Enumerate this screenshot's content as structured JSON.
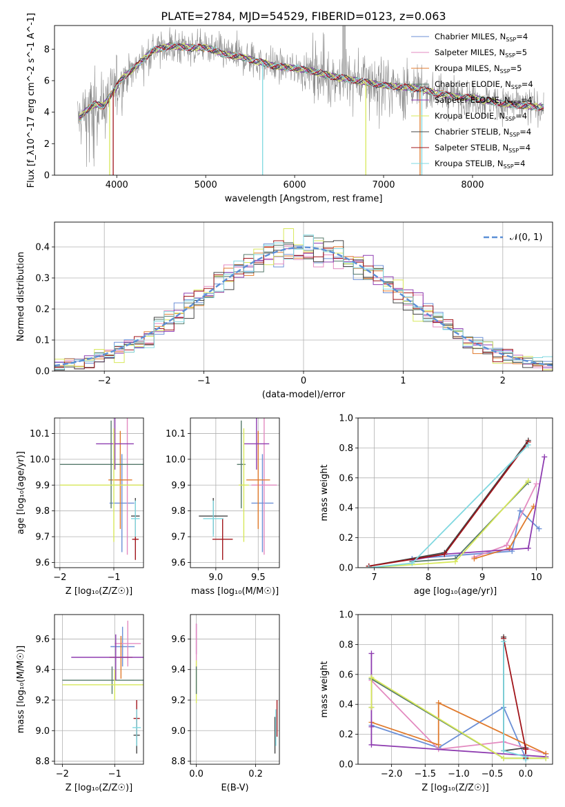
{
  "figure_title": "PLATE=2784, MJD=54529, FIBERID=0123, z=0.063",
  "colors": {
    "Chabrier MILES": "#6b8fd6",
    "Salpeter MILES": "#e38ac0",
    "Kroupa MILES": "#e07a2c",
    "Chabrier ELODIE": "#55796a",
    "Salpeter ELODIE": "#8e3cb0",
    "Kroupa ELODIE": "#d7e85a",
    "Chabrier STELIB": "#444444",
    "Salpeter STELIB": "#a0141a",
    "Kroupa STELIB": "#7fd8e0",
    "data": "#8a8a8a",
    "gaussian": "#5b8fd6"
  },
  "chart_data": [
    {
      "id": "spectrum",
      "type": "line",
      "xlabel": "wavelength [Angstrom, rest frame]",
      "ylabel": "Flux [f_λ10^-17 erg cm^-2 s^-1 A^-1]",
      "xlim": [
        3300,
        8900
      ],
      "ylim": [
        0,
        9.5
      ],
      "xticks": [
        4000,
        5000,
        6000,
        7000,
        8000
      ],
      "yticks": [
        0,
        2,
        4,
        6,
        8
      ],
      "grid": false,
      "legend_position": "upper-right",
      "legend": [
        {
          "model": "Chabrier MILES",
          "label": "Chabrier MILES, N",
          "sub": "SSP",
          "tail": "=4"
        },
        {
          "model": "Salpeter MILES",
          "label": "Salpeter MILES, N",
          "sub": "SSP",
          "tail": "=5"
        },
        {
          "model": "Kroupa MILES",
          "label": "Kroupa MILES, N",
          "sub": "SSP",
          "tail": "=5"
        },
        {
          "model": "Chabrier ELODIE",
          "label": "Chabrier ELODIE, N",
          "sub": "SSP",
          "tail": "=4"
        },
        {
          "model": "Salpeter ELODIE",
          "label": "Salpeter ELODIE, N",
          "sub": "SSP",
          "tail": "=4"
        },
        {
          "model": "Kroupa ELODIE",
          "label": "Kroupa ELODIE, N",
          "sub": "SSP",
          "tail": "=4"
        },
        {
          "model": "Chabrier STELIB",
          "label": "Chabrier STELIB, N",
          "sub": "SSP",
          "tail": "=4"
        },
        {
          "model": "Salpeter STELIB",
          "label": "Salpeter STELIB, N",
          "sub": "SSP",
          "tail": "=4"
        },
        {
          "model": "Kroupa STELIB",
          "label": "Kroupa STELIB, N",
          "sub": "SSP",
          "tail": "=4"
        }
      ],
      "continuum_wavelength": [
        3550,
        3650,
        3750,
        3850,
        3950,
        4050,
        4200,
        4400,
        4600,
        4800,
        5000,
        5200,
        5400,
        5600,
        5800,
        6000,
        6200,
        6400,
        6600,
        6800,
        7000,
        7200,
        7400,
        7600,
        7800,
        8000,
        8200,
        8400,
        8600,
        8800
      ],
      "continuum_flux": [
        3.4,
        4.1,
        4.5,
        4.4,
        5.2,
        6.1,
        6.8,
        7.9,
        8.2,
        8.1,
        8.1,
        7.7,
        7.5,
        7.2,
        6.9,
        6.8,
        6.6,
        6.3,
        6.1,
        5.9,
        5.7,
        5.6,
        5.5,
        5.2,
        5.0,
        4.9,
        4.7,
        4.5,
        4.4,
        4.3
      ],
      "gaps": [
        {
          "model": "Kroupa ELODIE",
          "wavelength": 3920
        },
        {
          "model": "Salpeter STELIB",
          "wavelength": 3960
        },
        {
          "model": "Kroupa STELIB",
          "wavelength": 5640
        },
        {
          "model": "Kroupa ELODIE",
          "wavelength": 6800
        },
        {
          "model": "Kroupa MILES",
          "wavelength": 7410
        },
        {
          "model": "Kroupa STELIB",
          "wavelength": 7430
        }
      ]
    },
    {
      "id": "residuals",
      "type": "step",
      "xlabel": "(data-model)/error",
      "ylabel": "Normed distribution",
      "xlim": [
        -2.5,
        2.5
      ],
      "ylim": [
        0,
        0.48
      ],
      "xticks": [
        -2,
        -1,
        0,
        1,
        2
      ],
      "yticks": [
        0.0,
        0.1,
        0.2,
        0.3,
        0.4
      ],
      "grid": true,
      "legend_position": "upper-right",
      "gaussian_label": "𝒩(0, 1)",
      "bins": 50
    },
    {
      "id": "age_vs_Z",
      "type": "errorbar",
      "xlabel": "Z [log₁₀(Z/Z☉)]",
      "ylabel": "age  [log₁₀(age/yr)]",
      "xlim": [
        -2.1,
        -0.45
      ],
      "ylim": [
        9.58,
        10.16
      ],
      "xticks": [
        -2,
        -1
      ],
      "yticks": [
        9.6,
        9.7,
        9.8,
        9.9,
        10.0,
        10.1
      ],
      "grid": true,
      "points": [
        {
          "model": "Chabrier MILES",
          "x": -0.85,
          "xerr": 0.23,
          "y": 9.83,
          "yerr": 0.19
        },
        {
          "model": "Salpeter MILES",
          "x": -0.75,
          "xerr": 0.25,
          "y": 9.9,
          "yerr": 0.27
        },
        {
          "model": "Kroupa MILES",
          "x": -0.88,
          "xerr": 0.22,
          "y": 9.92,
          "yerr": 0.19
        },
        {
          "model": "Chabrier ELODIE",
          "x": -1.05,
          "xerr": 0.95,
          "y": 9.98,
          "yerr": 0.17
        },
        {
          "model": "Salpeter ELODIE",
          "x": -0.98,
          "xerr": 0.35,
          "y": 10.06,
          "yerr": 0.1
        },
        {
          "model": "Kroupa ELODIE",
          "x": -1.0,
          "xerr": 1.0,
          "y": 9.9,
          "yerr": 0.22
        },
        {
          "model": "Chabrier STELIB",
          "x": -0.6,
          "xerr": 0.08,
          "y": 9.78,
          "yerr": 0.07
        },
        {
          "model": "Salpeter STELIB",
          "x": -0.6,
          "xerr": 0.06,
          "y": 9.69,
          "yerr": 0.08
        },
        {
          "model": "Kroupa STELIB",
          "x": -0.6,
          "xerr": 0.08,
          "y": 9.77,
          "yerr": 0.07
        }
      ]
    },
    {
      "id": "age_vs_mass",
      "type": "errorbar",
      "xlabel": "mass [log₁₀(M/M☉)]",
      "ylabel": "",
      "xlim": [
        8.7,
        9.75
      ],
      "ylim": [
        9.58,
        10.16
      ],
      "xticks": [
        9.0,
        9.5
      ],
      "yticks": [
        9.6,
        9.7,
        9.8,
        9.9,
        10.0,
        10.1
      ],
      "grid": true,
      "points": [
        {
          "model": "Chabrier MILES",
          "x": 9.55,
          "xerr": 0.13,
          "y": 9.83,
          "yerr": 0.19
        },
        {
          "model": "Salpeter MILES",
          "x": 9.57,
          "xerr": 0.15,
          "y": 9.9,
          "yerr": 0.27
        },
        {
          "model": "Kroupa MILES",
          "x": 9.5,
          "xerr": 0.14,
          "y": 9.92,
          "yerr": 0.19
        },
        {
          "model": "Chabrier ELODIE",
          "x": 9.3,
          "xerr": 0.05,
          "y": 9.98,
          "yerr": 0.17
        },
        {
          "model": "Salpeter ELODIE",
          "x": 9.48,
          "xerr": 0.15,
          "y": 10.06,
          "yerr": 0.1
        },
        {
          "model": "Kroupa ELODIE",
          "x": 9.33,
          "xerr": 0.06,
          "y": 9.9,
          "yerr": 0.22
        },
        {
          "model": "Chabrier STELIB",
          "x": 8.97,
          "xerr": 0.17,
          "y": 9.78,
          "yerr": 0.07
        },
        {
          "model": "Salpeter STELIB",
          "x": 9.08,
          "xerr": 0.12,
          "y": 9.69,
          "yerr": 0.08
        },
        {
          "model": "Kroupa STELIB",
          "x": 8.97,
          "xerr": 0.12,
          "y": 9.77,
          "yerr": 0.07
        }
      ]
    },
    {
      "id": "weight_vs_age",
      "type": "line",
      "xlabel": "age  [log₁₀(age/yr)]",
      "ylabel": "mass weight",
      "xlim": [
        6.7,
        10.3
      ],
      "ylim": [
        0,
        1.0
      ],
      "xticks": [
        7,
        8,
        9,
        10
      ],
      "yticks": [
        0.0,
        0.2,
        0.4,
        0.6,
        0.8,
        1.0
      ],
      "grid": true,
      "series": [
        {
          "model": "Chabrier MILES",
          "x": [
            7.7,
            9.55,
            9.7,
            10.05
          ],
          "y": [
            0.06,
            0.11,
            0.38,
            0.26
          ]
        },
        {
          "model": "Salpeter MILES",
          "x": [
            8.85,
            9.45,
            10.0
          ],
          "y": [
            0.07,
            0.15,
            0.56
          ]
        },
        {
          "model": "Kroupa MILES",
          "x": [
            8.85,
            9.5,
            9.95
          ],
          "y": [
            0.06,
            0.13,
            0.41
          ]
        },
        {
          "model": "Chabrier ELODIE",
          "x": [
            7.7,
            8.5,
            9.85
          ],
          "y": [
            0.04,
            0.06,
            0.57
          ]
        },
        {
          "model": "Salpeter ELODIE",
          "x": [
            7.7,
            8.3,
            9.85,
            10.15
          ],
          "y": [
            0.05,
            0.09,
            0.13,
            0.74
          ]
        },
        {
          "model": "Kroupa ELODIE",
          "x": [
            6.9,
            8.5,
            9.85
          ],
          "y": [
            0.0,
            0.04,
            0.58
          ]
        },
        {
          "model": "Chabrier STELIB",
          "x": [
            6.9,
            8.3,
            9.85
          ],
          "y": [
            0.01,
            0.1,
            0.85
          ]
        },
        {
          "model": "Salpeter STELIB",
          "x": [
            6.9,
            8.3,
            9.85
          ],
          "y": [
            0.01,
            0.09,
            0.84
          ]
        },
        {
          "model": "Kroupa STELIB",
          "x": [
            6.9,
            7.7,
            9.85
          ],
          "y": [
            0.0,
            0.03,
            0.82
          ]
        }
      ]
    },
    {
      "id": "mass_vs_Z",
      "type": "errorbar",
      "xlabel": "Z [log₁₀(Z/Z☉)]",
      "ylabel": "mass [log₁₀(M/M☉)]",
      "xlim": [
        -2.15,
        -0.45
      ],
      "ylim": [
        8.78,
        9.76
      ],
      "xticks": [
        -2,
        -1
      ],
      "yticks": [
        8.8,
        9.0,
        9.2,
        9.4,
        9.6
      ],
      "grid": true,
      "points": [
        {
          "model": "Chabrier MILES",
          "x": -0.85,
          "xerr": 0.23,
          "y": 9.55,
          "yerr": 0.13
        },
        {
          "model": "Salpeter MILES",
          "x": -0.75,
          "xerr": 0.25,
          "y": 9.57,
          "yerr": 0.15
        },
        {
          "model": "Kroupa MILES",
          "x": -0.88,
          "xerr": 0.22,
          "y": 9.48,
          "yerr": 0.14
        },
        {
          "model": "Chabrier ELODIE",
          "x": -1.05,
          "xerr": 0.95,
          "y": 9.33,
          "yerr": 0.09
        },
        {
          "model": "Salpeter ELODIE",
          "x": -0.98,
          "xerr": 0.85,
          "y": 9.48,
          "yerr": 0.15
        },
        {
          "model": "Kroupa ELODIE",
          "x": -1.0,
          "xerr": 1.0,
          "y": 9.3,
          "yerr": 0.1
        },
        {
          "model": "Chabrier STELIB",
          "x": -0.58,
          "xerr": 0.06,
          "y": 8.97,
          "yerr": 0.12
        },
        {
          "model": "Salpeter STELIB",
          "x": -0.58,
          "xerr": 0.06,
          "y": 9.08,
          "yerr": 0.12
        },
        {
          "model": "Kroupa STELIB",
          "x": -0.58,
          "xerr": 0.08,
          "y": 9.02,
          "yerr": 0.12
        }
      ]
    },
    {
      "id": "mass_vs_ebv",
      "type": "errorbar",
      "xlabel": "E(B-V)",
      "ylabel": "",
      "xlim": [
        -0.02,
        0.28
      ],
      "ylim": [
        8.78,
        9.76
      ],
      "xticks": [
        0.0,
        0.2
      ],
      "yticks": [
        8.8,
        9.0,
        9.2,
        9.4,
        9.6
      ],
      "grid": true,
      "points": [
        {
          "model": "Salpeter ELODIE",
          "x": 0.0,
          "xerr": 0,
          "y": 9.6,
          "yerr": 0.1
        },
        {
          "model": "Salpeter MILES",
          "x": 0.0,
          "xerr": 0,
          "y": 9.55,
          "yerr": 0.15
        },
        {
          "model": "Kroupa ELODIE",
          "x": 0.0,
          "xerr": 0,
          "y": 9.32,
          "yerr": 0.14
        },
        {
          "model": "Chabrier ELODIE",
          "x": 0.0,
          "xerr": 0,
          "y": 9.33,
          "yerr": 0.09
        },
        {
          "model": "Chabrier STELIB",
          "x": 0.265,
          "xerr": 0,
          "y": 8.97,
          "yerr": 0.12
        },
        {
          "model": "Salpeter STELIB",
          "x": 0.272,
          "xerr": 0,
          "y": 9.08,
          "yerr": 0.12
        },
        {
          "model": "Kroupa STELIB",
          "x": 0.268,
          "xerr": 0,
          "y": 9.02,
          "yerr": 0.12
        }
      ]
    },
    {
      "id": "weight_vs_Z",
      "type": "line",
      "xlabel": "Z [log₁₀(Z/Z☉)]",
      "ylabel": "mass weight",
      "xlim": [
        -2.5,
        0.4
      ],
      "ylim": [
        0,
        1.0
      ],
      "xticks": [
        -2.0,
        -1.5,
        -1.0,
        -0.5,
        0.0
      ],
      "yticks": [
        0.0,
        0.2,
        0.4,
        0.6,
        0.8,
        1.0
      ],
      "grid": true,
      "series": [
        {
          "model": "Chabrier MILES",
          "x": [
            -2.3,
            -1.3,
            -0.33,
            0.0
          ],
          "y": [
            0.26,
            0.11,
            0.38,
            0.04
          ]
        },
        {
          "model": "Salpeter MILES",
          "x": [
            -2.3,
            -1.3,
            -0.33,
            0.3
          ],
          "y": [
            0.56,
            0.1,
            0.15,
            0.07
          ]
        },
        {
          "model": "Kroupa MILES",
          "x": [
            -2.3,
            -1.3,
            -1.3,
            0.3
          ],
          "y": [
            0.28,
            0.13,
            0.41,
            0.07
          ]
        },
        {
          "model": "Chabrier ELODIE",
          "x": [
            -2.3,
            -2.3,
            -0.33,
            0.3
          ],
          "y": [
            0.38,
            0.57,
            0.04,
            0.04
          ]
        },
        {
          "model": "Salpeter ELODIE",
          "x": [
            -2.3,
            -2.3,
            -2.3,
            0.3
          ],
          "y": [
            0.74,
            0.25,
            0.13,
            0.05
          ]
        },
        {
          "model": "Kroupa ELODIE",
          "x": [
            -2.3,
            -2.3,
            -0.33,
            0.3
          ],
          "y": [
            0.38,
            0.58,
            0.04,
            0.04
          ]
        },
        {
          "model": "Chabrier STELIB",
          "x": [
            -0.33,
            -0.33,
            0.0,
            0.0
          ],
          "y": [
            0.85,
            0.09,
            0.11,
            0.04
          ]
        },
        {
          "model": "Salpeter STELIB",
          "x": [
            -0.33,
            0.0,
            0.0
          ],
          "y": [
            0.84,
            0.1,
            0.04
          ]
        },
        {
          "model": "Kroupa STELIB",
          "x": [
            -0.33,
            -0.33,
            0.0,
            0.0
          ],
          "y": [
            0.82,
            0.09,
            0.05,
            0.03
          ]
        }
      ]
    }
  ]
}
